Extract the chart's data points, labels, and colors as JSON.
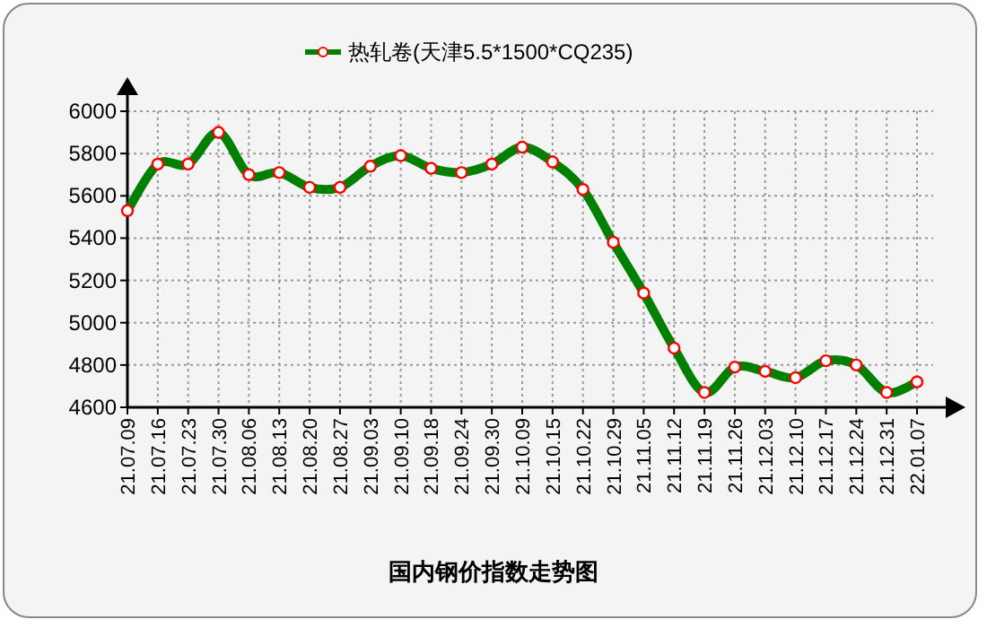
{
  "chart_data": {
    "type": "line",
    "title": "国内钢价指数走势图",
    "categories": [
      "21.07.09",
      "21.07.16",
      "21.07.23",
      "21.07.30",
      "21.08.06",
      "21.08.13",
      "21.08.20",
      "21.08.27",
      "21.09.03",
      "21.09.10",
      "21.09.18",
      "21.09.24",
      "21.09.30",
      "21.10.09",
      "21.10.15",
      "21.10.22",
      "21.10.29",
      "21.11.05",
      "21.11.12",
      "21.11.19",
      "21.11.26",
      "21.12.03",
      "21.12.10",
      "21.12.17",
      "21.12.24",
      "21.12.31",
      "22.01.07"
    ],
    "series": [
      {
        "name": "热轧卷(天津5.5*1500*CQ235)",
        "color": "#008000",
        "values": [
          5530,
          5750,
          5750,
          5900,
          5700,
          5710,
          5640,
          5640,
          5740,
          5790,
          5730,
          5710,
          5750,
          5830,
          5760,
          5630,
          5380,
          5140,
          4880,
          4670,
          4790,
          4770,
          4740,
          4820,
          4800,
          4670,
          4720
        ]
      }
    ],
    "ylim": [
      4600,
      6000
    ],
    "yticks": [
      4600,
      4800,
      5000,
      5200,
      5400,
      5600,
      5800,
      6000
    ],
    "grid": true,
    "legend": "top",
    "marker": "circle"
  }
}
